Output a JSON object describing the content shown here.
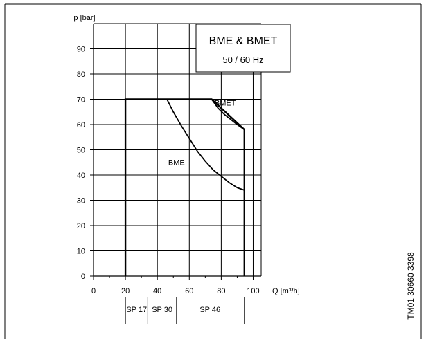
{
  "chart_data": {
    "type": "line",
    "title": "BME & BMET",
    "subtitle": "50 / 60 Hz",
    "ylabel": "p [bar]",
    "xlabel": "Q [m³/h]",
    "xlim": [
      0,
      105
    ],
    "ylim": [
      0,
      100
    ],
    "xticks": [
      0,
      20,
      40,
      60,
      80,
      100
    ],
    "yticks": [
      0,
      10,
      20,
      30,
      40,
      50,
      60,
      70,
      80,
      90
    ],
    "xgrid": [
      20,
      40,
      60,
      80,
      100
    ],
    "grid": true,
    "series": [
      {
        "name": "BME",
        "points": [
          [
            46,
            70
          ],
          [
            50,
            65
          ],
          [
            55,
            59.5
          ],
          [
            60,
            54.5
          ],
          [
            65,
            49.5
          ],
          [
            70,
            45.5
          ],
          [
            75,
            42
          ],
          [
            80,
            39.5
          ],
          [
            85,
            37
          ],
          [
            90,
            35
          ],
          [
            94.5,
            34
          ]
        ]
      },
      {
        "name": "BMET",
        "points": [
          [
            74,
            70
          ],
          [
            78,
            66.5
          ],
          [
            82,
            64
          ],
          [
            86,
            62
          ],
          [
            90,
            60
          ],
          [
            94.5,
            58
          ]
        ]
      }
    ],
    "envelope": {
      "points": [
        [
          20,
          0
        ],
        [
          20,
          70
        ],
        [
          74,
          70
        ],
        [
          94.5,
          58
        ],
        [
          94.5,
          0
        ]
      ]
    },
    "ranges": [
      {
        "label": "SP 17",
        "from": 20,
        "to": 30
      },
      {
        "label": "SP 30",
        "from": 38,
        "to": 58
      },
      {
        "label": "SP 46",
        "from": 58,
        "to": 94.5
      }
    ]
  },
  "side_code": "TM01 30660 3398"
}
